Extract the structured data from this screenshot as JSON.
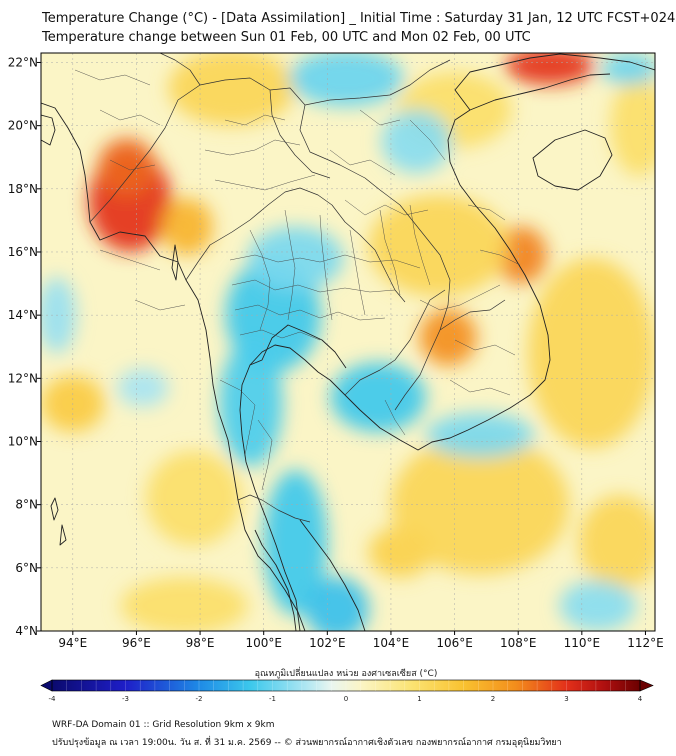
{
  "header": {
    "title_line1": "Temperature Change (°C) - [Data Assimilation] _ Initial Time : Saturday 31 Jan, 12 UTC FCST+024",
    "title_line2": "Temperature change between Sun 01 Feb, 00 UTC and Mon 02 Feb, 00 UTC"
  },
  "map": {
    "lon_range": [
      93,
      112.3
    ],
    "lat_range": [
      4,
      22.3
    ],
    "lon_ticks": [
      {
        "value": 94,
        "label": "94°E"
      },
      {
        "value": 96,
        "label": "96°E"
      },
      {
        "value": 98,
        "label": "98°E"
      },
      {
        "value": 100,
        "label": "100°E"
      },
      {
        "value": 102,
        "label": "102°E"
      },
      {
        "value": 104,
        "label": "104°E"
      },
      {
        "value": 106,
        "label": "106°E"
      },
      {
        "value": 108,
        "label": "108°E"
      },
      {
        "value": 110,
        "label": "110°E"
      },
      {
        "value": 112,
        "label": "112°E"
      }
    ],
    "lat_ticks": [
      {
        "value": 4,
        "label": "4°N"
      },
      {
        "value": 6,
        "label": "6°N"
      },
      {
        "value": 8,
        "label": "8°N"
      },
      {
        "value": 10,
        "label": "10°N"
      },
      {
        "value": 12,
        "label": "12°N"
      },
      {
        "value": 14,
        "label": "14°N"
      },
      {
        "value": 16,
        "label": "16°N"
      },
      {
        "value": 18,
        "label": "18°N"
      },
      {
        "value": 20,
        "label": "20°N"
      },
      {
        "value": 22,
        "label": "22°N"
      }
    ],
    "background_color": "#fbf5c6",
    "field": [
      {
        "lon": 95.8,
        "lat": 17.6,
        "rx": 1.3,
        "ry": 1.6,
        "value": 3.0
      },
      {
        "lon": 95.7,
        "lat": 18.7,
        "rx": 0.9,
        "ry": 0.9,
        "value": 2.6
      },
      {
        "lon": 97.6,
        "lat": 16.8,
        "rx": 0.8,
        "ry": 0.9,
        "value": 1.8
      },
      {
        "lon": 109.0,
        "lat": 21.9,
        "rx": 1.4,
        "ry": 0.6,
        "value": 3.0
      },
      {
        "lon": 108.1,
        "lat": 15.9,
        "rx": 0.8,
        "ry": 0.9,
        "value": 2.4
      },
      {
        "lon": 105.8,
        "lat": 13.3,
        "rx": 0.9,
        "ry": 0.9,
        "value": 2.3
      },
      {
        "lon": 105.5,
        "lat": 16.2,
        "rx": 2.2,
        "ry": 1.6,
        "value": 1.2
      },
      {
        "lon": 94.0,
        "lat": 11.2,
        "rx": 1.0,
        "ry": 0.9,
        "value": 1.4
      },
      {
        "lon": 97.8,
        "lat": 8.2,
        "rx": 1.5,
        "ry": 1.5,
        "value": 1.0
      },
      {
        "lon": 104.3,
        "lat": 6.5,
        "rx": 1.0,
        "ry": 0.8,
        "value": 1.3
      },
      {
        "lon": 106.8,
        "lat": 8.0,
        "rx": 2.8,
        "ry": 2.2,
        "value": 1.2
      },
      {
        "lon": 110.3,
        "lat": 12.8,
        "rx": 2.0,
        "ry": 3.0,
        "value": 1.2
      },
      {
        "lon": 111.2,
        "lat": 6.8,
        "rx": 1.3,
        "ry": 1.5,
        "value": 1.2
      },
      {
        "lon": 97.5,
        "lat": 4.8,
        "rx": 2.0,
        "ry": 0.9,
        "value": 1.0
      },
      {
        "lon": 99.0,
        "lat": 21.2,
        "rx": 2.0,
        "ry": 1.2,
        "value": 1.2
      },
      {
        "lon": 106.0,
        "lat": 20.5,
        "rx": 1.8,
        "ry": 1.2,
        "value": 1.0
      },
      {
        "lon": 111.8,
        "lat": 20.0,
        "rx": 0.9,
        "ry": 1.6,
        "value": 1.0
      },
      {
        "lon": 100.3,
        "lat": 14.0,
        "rx": 1.5,
        "ry": 1.8,
        "value": -1.3
      },
      {
        "lon": 101.0,
        "lat": 15.8,
        "rx": 1.5,
        "ry": 1.0,
        "value": -0.9
      },
      {
        "lon": 99.6,
        "lat": 11.2,
        "rx": 1.0,
        "ry": 2.0,
        "value": -1.2
      },
      {
        "lon": 103.6,
        "lat": 11.4,
        "rx": 1.5,
        "ry": 1.1,
        "value": -1.3
      },
      {
        "lon": 101.0,
        "lat": 6.8,
        "rx": 1.0,
        "ry": 2.3,
        "value": -1.3
      },
      {
        "lon": 102.3,
        "lat": 4.7,
        "rx": 1.0,
        "ry": 1.0,
        "value": -1.4
      },
      {
        "lon": 102.6,
        "lat": 21.5,
        "rx": 1.8,
        "ry": 0.9,
        "value": -1.0
      },
      {
        "lon": 104.8,
        "lat": 19.5,
        "rx": 1.1,
        "ry": 1.0,
        "value": -0.8
      },
      {
        "lon": 106.8,
        "lat": 10.2,
        "rx": 1.7,
        "ry": 0.7,
        "value": -0.9
      },
      {
        "lon": 111.5,
        "lat": 21.8,
        "rx": 0.9,
        "ry": 0.5,
        "value": -1.0
      },
      {
        "lon": 93.5,
        "lat": 14.0,
        "rx": 0.6,
        "ry": 1.2,
        "value": -0.7
      },
      {
        "lon": 110.5,
        "lat": 4.8,
        "rx": 1.2,
        "ry": 0.8,
        "value": -0.8
      },
      {
        "lon": 96.2,
        "lat": 11.7,
        "rx": 0.8,
        "ry": 0.6,
        "value": -0.6
      }
    ]
  },
  "colorbar": {
    "label": "อุณหภูมิเปลี่ยนแปลง หน่วย องศาเซลเซียส (°C)",
    "min": -4,
    "max": 4,
    "ticks": [
      "-4",
      "-3",
      "-2",
      "-1",
      "0",
      "1",
      "2",
      "3",
      "4"
    ],
    "color_stops": [
      {
        "v": -4.0,
        "c": "#0b0a6e"
      },
      {
        "v": -3.0,
        "c": "#1e1ec8"
      },
      {
        "v": -2.0,
        "c": "#1e8ae6"
      },
      {
        "v": -1.3,
        "c": "#3cc8ec"
      },
      {
        "v": -0.6,
        "c": "#a6e4f2"
      },
      {
        "v": -0.2,
        "c": "#e9f6f0"
      },
      {
        "v": 0.2,
        "c": "#fbf5c6"
      },
      {
        "v": 0.9,
        "c": "#fbe372"
      },
      {
        "v": 1.6,
        "c": "#f9c230"
      },
      {
        "v": 2.3,
        "c": "#f38e1c"
      },
      {
        "v": 3.0,
        "c": "#e3301a"
      },
      {
        "v": 3.5,
        "c": "#b11010"
      },
      {
        "v": 4.0,
        "c": "#6b0000"
      }
    ]
  },
  "footer": {
    "line1": "WRF-DA Domain 01 :: Grid Resolution 9km x 9km",
    "line2": "ปรับปรุงข้อมูล ณ เวลา 19:00น. วัน ส. ที่ 31 ม.ค. 2569 -- © ส่วนพยากรณ์อากาศเชิงตัวเลข กองพยากรณ์อากาศ กรมอุตุนิยมวิทยา"
  }
}
